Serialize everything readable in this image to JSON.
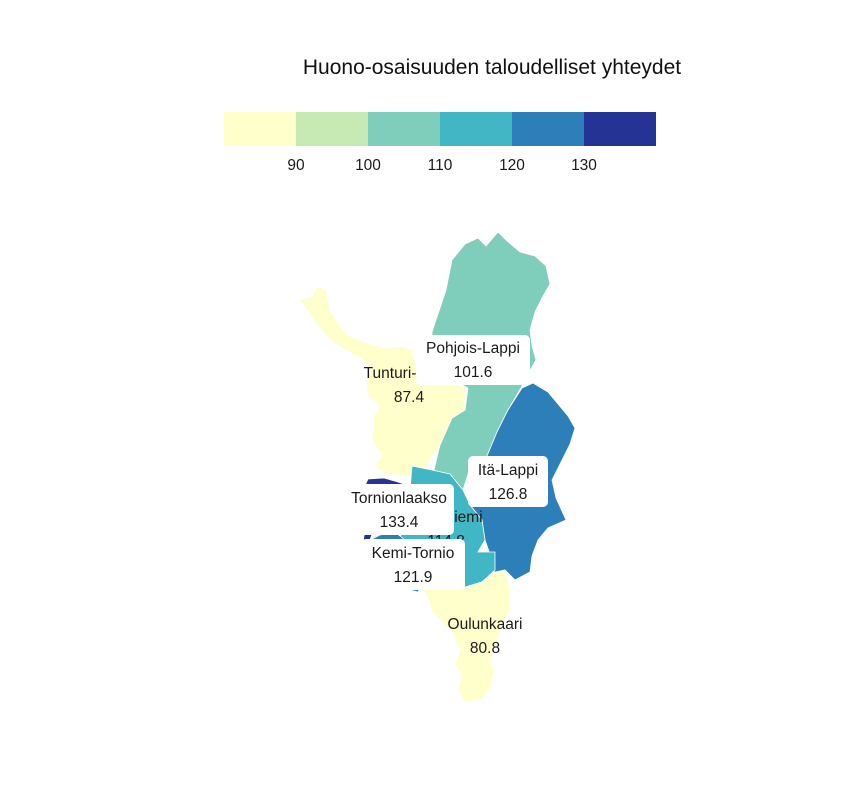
{
  "title": "Huono-osaisuuden taloudelliset yhteydet",
  "legend": {
    "bins": [
      {
        "color": "#ffffcc"
      },
      {
        "color": "#c7e9b4"
      },
      {
        "color": "#7fcdbb"
      },
      {
        "color": "#41b6c4"
      },
      {
        "color": "#2c7fb8"
      },
      {
        "color": "#253494"
      }
    ],
    "ticks": [
      "90",
      "100",
      "110",
      "120",
      "130"
    ]
  },
  "regions": [
    {
      "name": "Pohjois-Lappi",
      "value": "101.6",
      "color": "#7fcdbb"
    },
    {
      "name": "Tunturi-Lappi",
      "value": "87.4",
      "color": "#ffffcc"
    },
    {
      "name": "Itä-Lappi",
      "value": "126.8",
      "color": "#2c7fb8"
    },
    {
      "name": "Tornionlaakso",
      "value": "133.4",
      "color": "#253494"
    },
    {
      "name": "Rovaniemi",
      "value": "114.8",
      "color": "#41b6c4"
    },
    {
      "name": "Kemi-Tornio",
      "value": "121.9",
      "color": "#2c7fb8"
    },
    {
      "name": "Oulunkaari",
      "value": "80.8",
      "color": "#ffffcc"
    }
  ]
}
